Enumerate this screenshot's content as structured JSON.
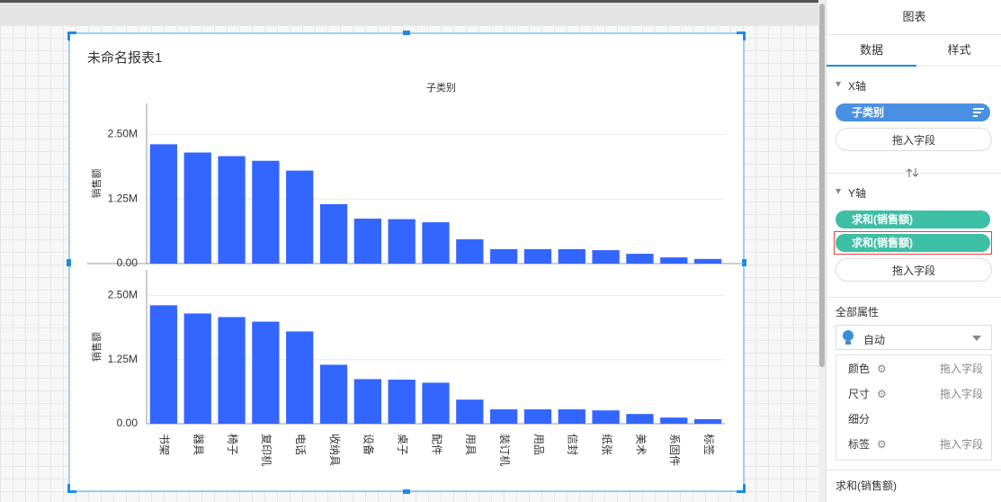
{
  "report_title": "未命名报表1",
  "chart_data": [
    {
      "type": "bar",
      "xlabel": "子类别",
      "ylabel": "销售额",
      "color": "#3366ff",
      "grid": true,
      "categories": [
        null,
        null,
        null,
        null,
        null,
        null,
        null,
        null,
        null,
        null,
        null,
        null,
        null,
        null,
        null,
        null,
        null
      ],
      "values": [
        2310000,
        2150000,
        2080000,
        1990000,
        1800000,
        1150000,
        870000,
        860000,
        800000,
        470000,
        280000,
        280000,
        280000,
        260000,
        190000,
        120000,
        90000
      ],
      "ylim": [
        0,
        3100000
      ],
      "yticks": [
        {
          "value": 0,
          "label": "0.00"
        },
        {
          "value": 1250000,
          "label": "1.25M"
        },
        {
          "value": 2500000,
          "label": "2.50M"
        }
      ]
    },
    {
      "type": "bar",
      "ylabel": "销售额",
      "color": "#3366ff",
      "grid": true,
      "categories": [
        "书架",
        "器具",
        "椅子",
        "复印机",
        "电话",
        "收纳具",
        "设备",
        "桌子",
        "配件",
        "用具",
        "装订机",
        "用品",
        "信封",
        "纸张",
        "美术",
        "系固件",
        "标签"
      ],
      "values": [
        2310000,
        2150000,
        2080000,
        1990000,
        1800000,
        1150000,
        870000,
        860000,
        800000,
        470000,
        280000,
        280000,
        280000,
        260000,
        190000,
        120000,
        90000
      ],
      "ylim": [
        0,
        3000000
      ],
      "yticks": [
        {
          "value": 0,
          "label": "0.00"
        },
        {
          "value": 1250000,
          "label": "1.25M"
        },
        {
          "value": 2500000,
          "label": "2.50M"
        }
      ]
    }
  ],
  "panel": {
    "header": "图表",
    "tabs": [
      "数据",
      "样式"
    ],
    "x_axis": {
      "title": "X轴",
      "fields": [
        "子类别"
      ],
      "drop": "拖入字段"
    },
    "y_axis": {
      "title": "Y轴",
      "fields": [
        "求和(销售额)",
        "求和(销售额)"
      ],
      "drop": "拖入字段"
    },
    "properties": {
      "title": "全部属性",
      "mode": "自动",
      "rows": [
        {
          "label": "颜色",
          "drop": "拖入字段"
        },
        {
          "label": "尺寸",
          "drop": "拖入字段"
        },
        {
          "label": "细分"
        },
        {
          "label": "标签",
          "drop": "拖入字段"
        }
      ]
    },
    "footer": "求和(销售额)"
  }
}
